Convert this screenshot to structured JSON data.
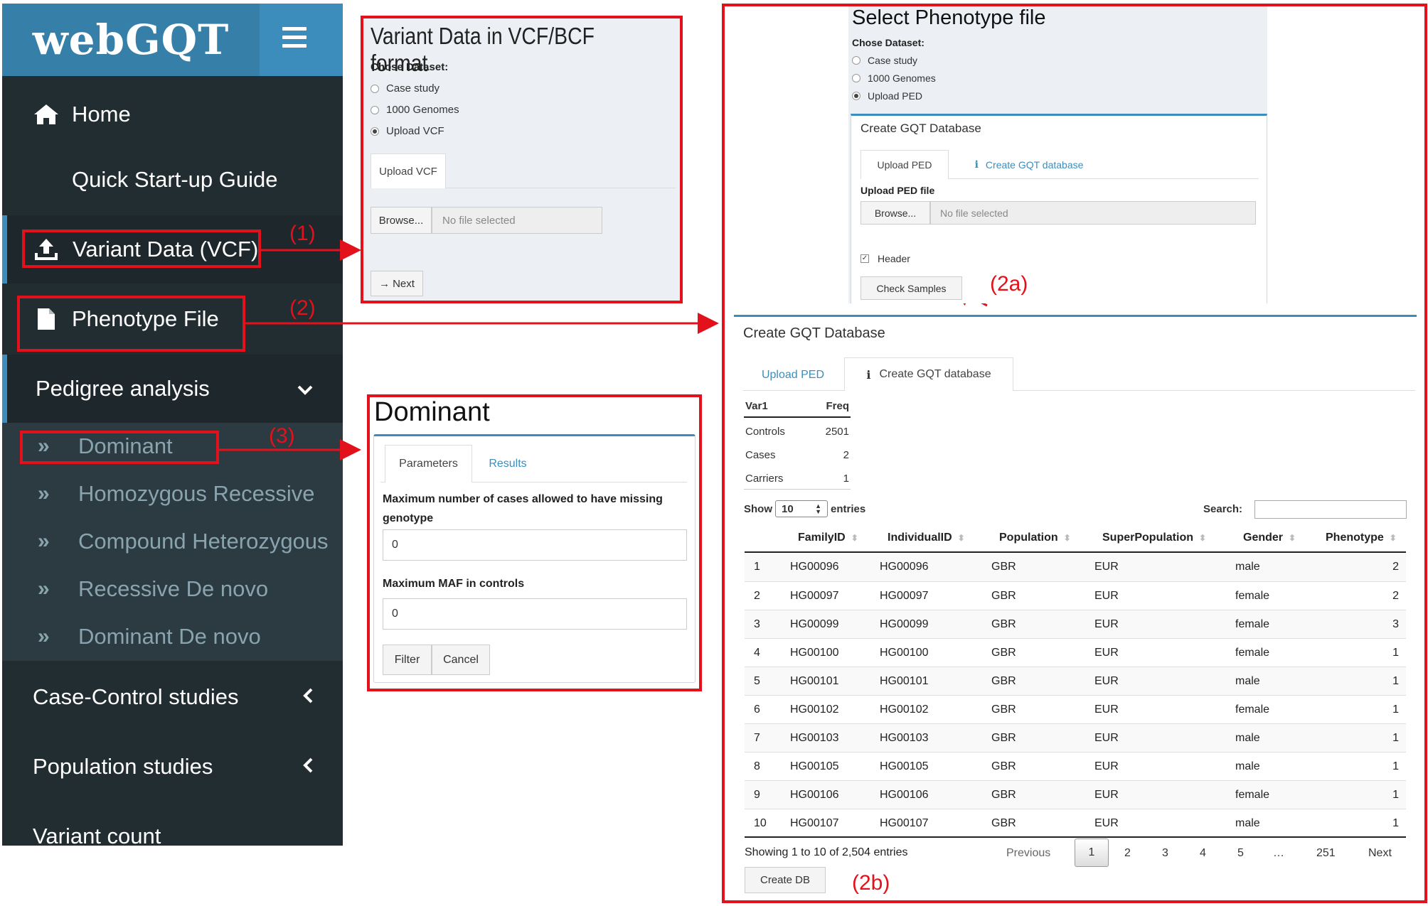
{
  "sidebar": {
    "logo": "webGQT",
    "items": [
      {
        "label": "Home"
      },
      {
        "label": "Quick Start-up Guide"
      },
      {
        "label": "Variant Data (VCF)"
      },
      {
        "label": "Phenotype File"
      },
      {
        "label": "Pedigree analysis"
      },
      {
        "label": "Case-Control studies"
      },
      {
        "label": "Population studies"
      },
      {
        "label": "Variant count"
      }
    ],
    "sub_items": [
      {
        "label": "Dominant"
      },
      {
        "label": "Homozygous Recessive"
      },
      {
        "label": "Compound Heterozygous"
      },
      {
        "label": "Recessive De novo"
      },
      {
        "label": "Dominant De novo"
      }
    ]
  },
  "annotations": {
    "a1": "(1)",
    "a2": "(2)",
    "a3": "(3)",
    "a2a": "(2a)",
    "a2b": "(2b)"
  },
  "vcf_panel": {
    "title": "Variant Data in VCF/BCF format",
    "dataset_label": "Chose Dataset:",
    "options": [
      "Case study",
      "1000 Genomes",
      "Upload VCF"
    ],
    "tab": "Upload VCF",
    "browse": "Browse...",
    "file_status": "No file selected",
    "next": "Next"
  },
  "dominant_panel": {
    "title": "Dominant",
    "tabs": [
      "Parameters",
      "Results"
    ],
    "field1_label": "Maximum number of cases allowed to have missing genotype",
    "field1_value": "0",
    "field2_label": "Maximum MAF in controls",
    "field2_value": "0",
    "filter": "Filter",
    "cancel": "Cancel"
  },
  "pheno_panel": {
    "title": "Select Phenotype file",
    "dataset_label": "Chose Dataset:",
    "options": [
      "Case study",
      "1000 Genomes",
      "Upload PED"
    ],
    "box_title": "Create GQT Database",
    "tabs": [
      "Upload PED",
      "Create GQT database"
    ],
    "upload_label": "Upload PED file",
    "browse": "Browse...",
    "file_status": "No file selected",
    "header_label": "Header",
    "check_samples": "Check Samples"
  },
  "gqt_panel": {
    "title": "Create GQT Database",
    "tabs": [
      "Upload PED",
      "Create GQT database"
    ],
    "summary_headers": [
      "Var1",
      "Freq"
    ],
    "summary_rows": [
      [
        "Controls",
        "2501"
      ],
      [
        "Cases",
        "2"
      ],
      [
        "Carriers",
        "1"
      ]
    ],
    "show_label": "Show",
    "show_value": "10",
    "entries_label": "entries",
    "search_label": "Search:",
    "columns": [
      "FamilyID",
      "IndividualID",
      "Population",
      "SuperPopulation",
      "Gender",
      "Phenotype"
    ],
    "rows": [
      [
        "1",
        "HG00096",
        "HG00096",
        "GBR",
        "EUR",
        "male",
        "2"
      ],
      [
        "2",
        "HG00097",
        "HG00097",
        "GBR",
        "EUR",
        "female",
        "2"
      ],
      [
        "3",
        "HG00099",
        "HG00099",
        "GBR",
        "EUR",
        "female",
        "3"
      ],
      [
        "4",
        "HG00100",
        "HG00100",
        "GBR",
        "EUR",
        "female",
        "1"
      ],
      [
        "5",
        "HG00101",
        "HG00101",
        "GBR",
        "EUR",
        "male",
        "1"
      ],
      [
        "6",
        "HG00102",
        "HG00102",
        "GBR",
        "EUR",
        "female",
        "1"
      ],
      [
        "7",
        "HG00103",
        "HG00103",
        "GBR",
        "EUR",
        "male",
        "1"
      ],
      [
        "8",
        "HG00105",
        "HG00105",
        "GBR",
        "EUR",
        "male",
        "1"
      ],
      [
        "9",
        "HG00106",
        "HG00106",
        "GBR",
        "EUR",
        "female",
        "1"
      ],
      [
        "10",
        "HG00107",
        "HG00107",
        "GBR",
        "EUR",
        "male",
        "1"
      ]
    ],
    "info": "Showing 1 to 10 of 2,504 entries",
    "pagination": [
      "Previous",
      "1",
      "2",
      "3",
      "4",
      "5",
      "…",
      "251",
      "Next"
    ],
    "create_db": "Create DB"
  },
  "colors": {
    "sidebar_bg": "#222d32",
    "logo_bg": "#3c8dbc",
    "accent": "#3c8dbc",
    "annotation_red": "#e3111b"
  }
}
